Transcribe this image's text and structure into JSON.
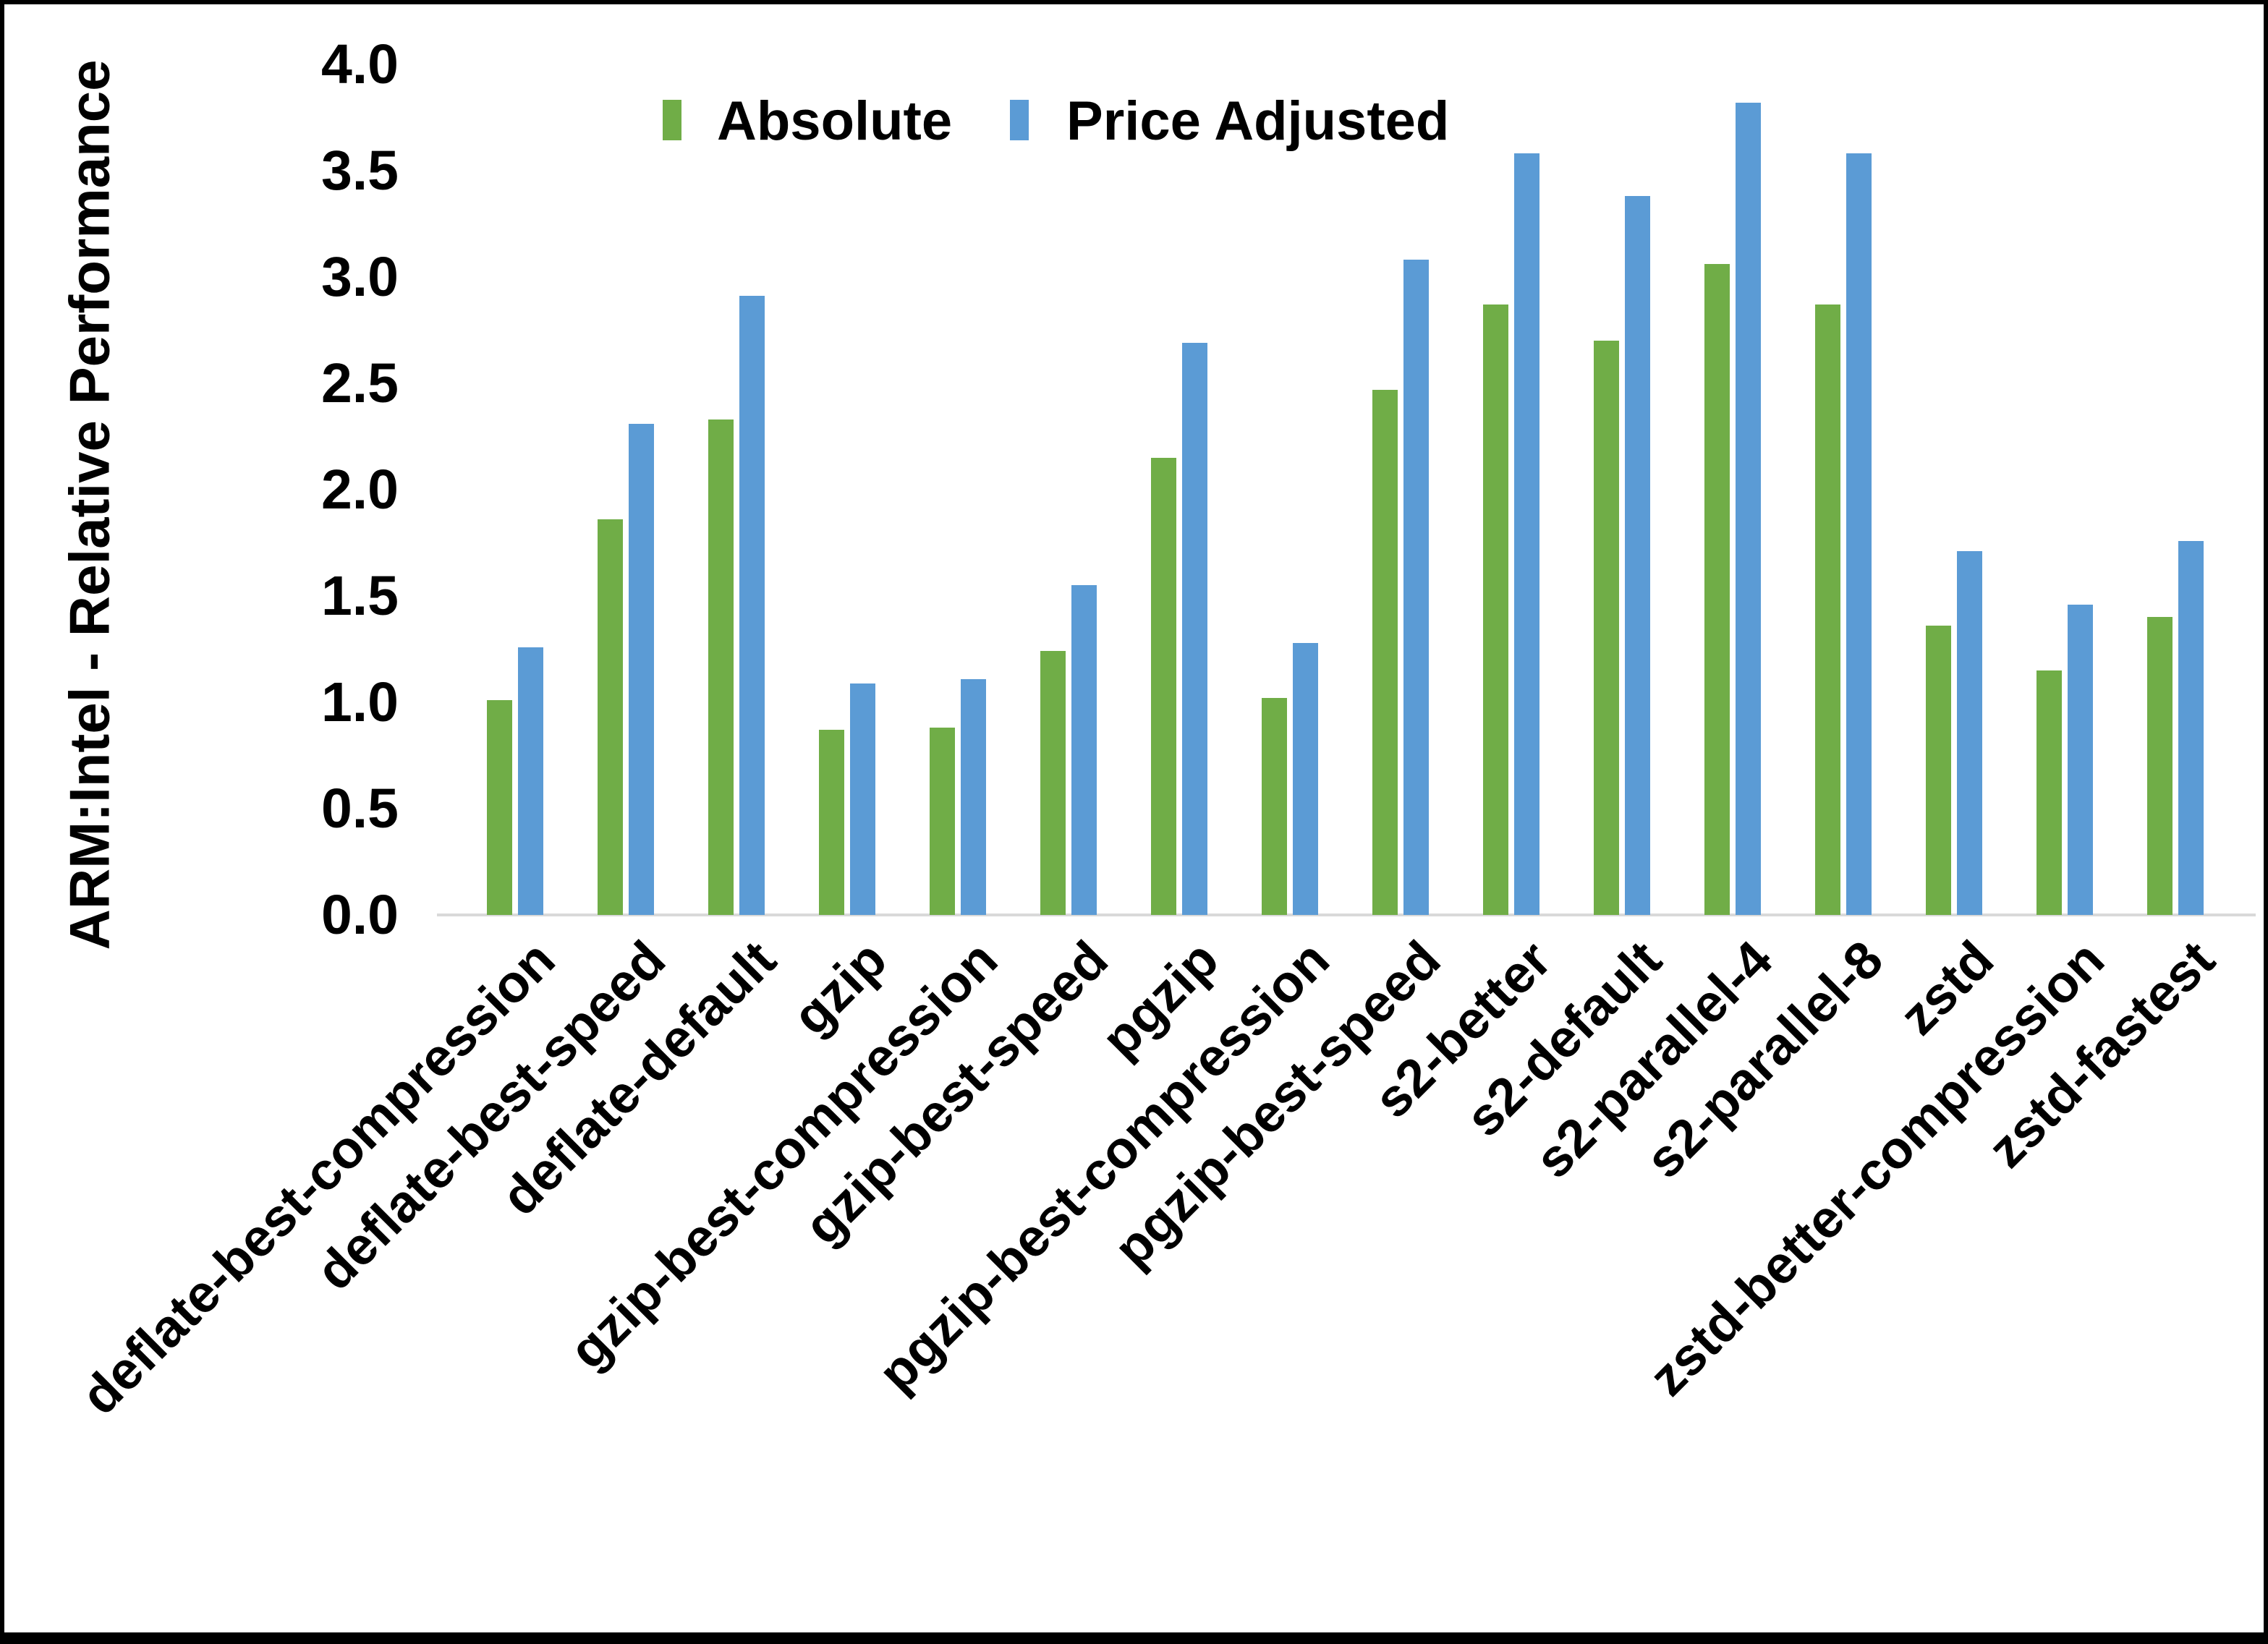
{
  "legend": {
    "absolute": "Absolute",
    "price_adjusted": "Price Adjusted"
  },
  "y_axis": {
    "title": "ARM:Intel - Relative Performance"
  },
  "colors": {
    "absolute": "#70AD47",
    "price_adjusted": "#5B9BD5",
    "axis_line": "#D9D9D9",
    "text": "#000000",
    "frame_border": "#000000"
  },
  "chart_data": {
    "type": "bar",
    "title": "",
    "xlabel": "",
    "ylabel": "ARM:Intel - Relative Performance",
    "ylim": [
      0.0,
      4.0
    ],
    "ytick_step": 0.5,
    "grid": false,
    "legend_position": "top-center",
    "categories": [
      "deflate-best-compression",
      "deflate-best-speed",
      "deflate-default",
      "gzip",
      "gzip-best-compression",
      "gzip-best-speed",
      "pgzip",
      "pgzip-best-compression",
      "pgzip-best-speed",
      "s2-better",
      "s2-default",
      "s2-parallel-4",
      "s2-parallel-8",
      "zstd",
      "zstd-better-compression",
      "zstd-fastest"
    ],
    "series": [
      {
        "name": "Absolute",
        "color": "#70AD47",
        "values": [
          1.01,
          1.86,
          2.33,
          0.87,
          0.88,
          1.24,
          2.15,
          1.02,
          2.47,
          2.87,
          2.7,
          3.06,
          2.87,
          1.36,
          1.15,
          1.4
        ]
      },
      {
        "name": "Price Adjusted",
        "color": "#5B9BD5",
        "values": [
          1.26,
          2.31,
          2.91,
          1.09,
          1.11,
          1.55,
          2.69,
          1.28,
          3.08,
          3.58,
          3.38,
          3.82,
          3.58,
          1.71,
          1.46,
          1.76
        ]
      }
    ]
  }
}
